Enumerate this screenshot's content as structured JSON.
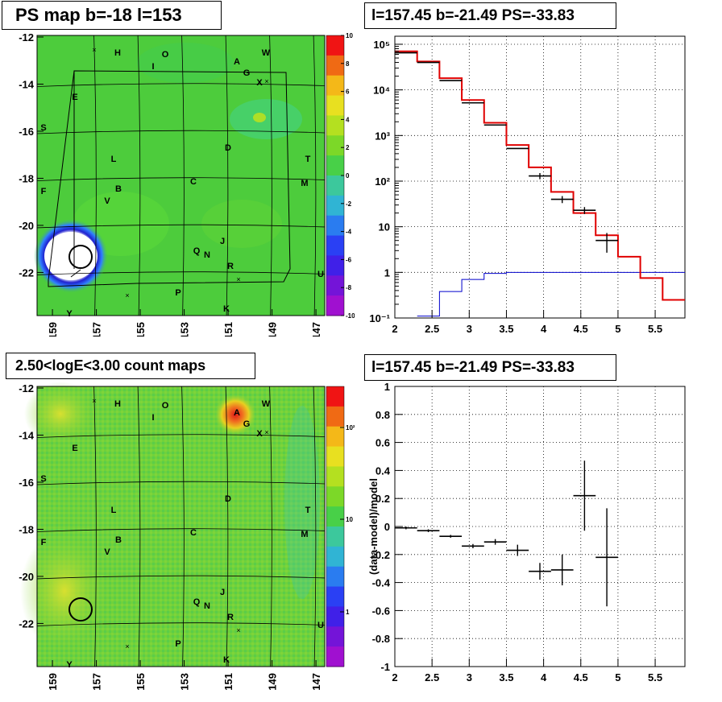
{
  "panels": {
    "top_left_title": "PS map b=-18 l=153",
    "top_right_title": "l=157.45 b=-21.49 PS=-33.83",
    "bottom_left_title": "2.50<logE<3.00 count maps",
    "bottom_right_title": "l=157.45 b=-21.49 PS=-33.83"
  },
  "map_axes": {
    "lat_ticks": [
      "-12",
      "-14",
      "-16",
      "-18",
      "-20",
      "-22"
    ],
    "lon_ticks": [
      "159",
      "157",
      "155",
      "153",
      "151",
      "149",
      "147"
    ]
  },
  "colorbar_ps": [
    "10",
    "8",
    "6",
    "4",
    "2",
    "0",
    "-2",
    "-4",
    "-6",
    "-8",
    "-10"
  ],
  "colorbar_counts": [
    "10²",
    "10",
    "1"
  ],
  "source_labels": [
    "H",
    "O",
    "I",
    "A",
    "W",
    "G",
    "X",
    "E",
    "S",
    "D",
    "T",
    "L",
    "C",
    "M",
    "F",
    "B",
    "V",
    "J",
    "Q",
    "N",
    "R",
    "U",
    "P",
    "K",
    "Y"
  ],
  "colors": {
    "model": "#e00000",
    "data": "#000000",
    "background_model": "#0000cc",
    "map_green": "#3fcc38",
    "hot_red": "#e01818"
  },
  "chart_data": [
    {
      "type": "step",
      "title": "l=157.45 b=-21.49 PS=-33.83",
      "xlim": [
        2,
        5.9
      ],
      "ylim": [
        0.1,
        150000
      ],
      "yscale": "log",
      "xticks": [
        "2",
        "2.5",
        "3",
        "3.5",
        "4",
        "4.5",
        "5",
        "5.5"
      ],
      "yticks": [
        "10⁻¹",
        "1",
        "10",
        "10²",
        "10³",
        "10⁴",
        "10⁵"
      ],
      "grid": true,
      "series": [
        {
          "kind": "model",
          "edges": [
            2,
            2.3,
            2.6,
            2.9,
            3.2,
            3.5,
            3.8,
            4.1,
            4.4,
            4.7,
            5.0,
            5.3,
            5.6,
            5.9
          ],
          "values": [
            70000,
            42000,
            18000,
            6000,
            1900,
            620,
            200,
            58,
            20,
            6.5,
            2.2,
            0.75,
            0.25
          ]
        },
        {
          "kind": "data",
          "x": [
            2.15,
            2.45,
            2.75,
            3.05,
            3.35,
            3.65,
            3.95,
            4.25,
            4.55,
            4.85
          ],
          "y": [
            65000,
            40000,
            16000,
            5200,
            1700,
            520,
            130,
            40,
            23,
            5
          ],
          "yerr": [
            [
              0,
              0
            ],
            [
              0,
              0
            ],
            [
              0,
              0
            ],
            [
              0,
              0
            ],
            [
              0,
              0
            ],
            [
              0,
              0
            ],
            [
              20,
              20
            ],
            [
              7,
              7
            ],
            [
              4,
              4
            ],
            [
              2.3,
              2.3
            ]
          ]
        },
        {
          "kind": "background",
          "edges": [
            2.3,
            2.6,
            2.9,
            3.2,
            3.5,
            5.9
          ],
          "values": [
            0.11,
            0.38,
            0.7,
            0.95,
            1.0
          ]
        }
      ]
    },
    {
      "type": "scatter",
      "title": "l=157.45 b=-21.49 PS=-33.83",
      "ylabel": "(data-model)/model",
      "xlim": [
        2,
        5.9
      ],
      "ylim": [
        -1,
        1
      ],
      "xticks": [
        "2",
        "2.5",
        "3",
        "3.5",
        "4",
        "4.5",
        "5",
        "5.5"
      ],
      "yticks": [
        "1",
        "0.8",
        "0.6",
        "0.4",
        "0.2",
        "0",
        "-0.2",
        "-0.4",
        "-0.6",
        "-0.8",
        "-1"
      ],
      "grid": true,
      "points": [
        {
          "x": 2.15,
          "y": -0.01,
          "xerr": 0.15,
          "yerr": 0.01
        },
        {
          "x": 2.45,
          "y": -0.03,
          "xerr": 0.15,
          "yerr": 0.01
        },
        {
          "x": 2.75,
          "y": -0.07,
          "xerr": 0.15,
          "yerr": 0.01
        },
        {
          "x": 3.05,
          "y": -0.14,
          "xerr": 0.15,
          "yerr": 0.015
        },
        {
          "x": 3.35,
          "y": -0.11,
          "xerr": 0.15,
          "yerr": 0.02
        },
        {
          "x": 3.65,
          "y": -0.17,
          "xerr": 0.15,
          "yerr": 0.04
        },
        {
          "x": 3.95,
          "y": -0.32,
          "xerr": 0.15,
          "yerr": 0.06
        },
        {
          "x": 4.25,
          "y": -0.31,
          "xerr": 0.15,
          "yerr": 0.11
        },
        {
          "x": 4.55,
          "y": 0.22,
          "xerr": 0.15,
          "yerr": 0.25
        },
        {
          "x": 4.85,
          "y": -0.22,
          "xerr": 0.15,
          "yerr": 0.35
        }
      ]
    }
  ]
}
